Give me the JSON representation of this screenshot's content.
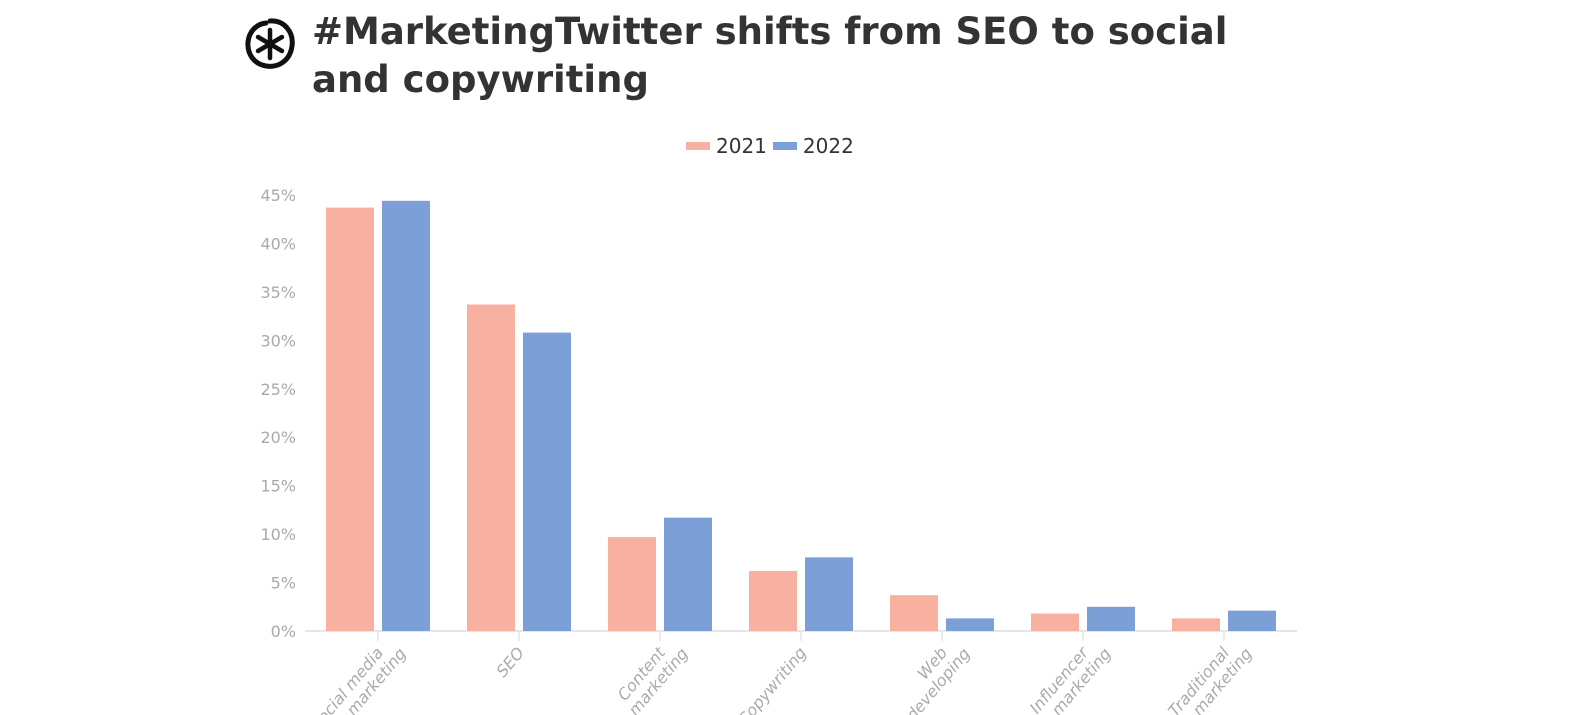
{
  "title": "#MarketingTwitter shifts from SEO to social and copywriting",
  "logo": "asterisk-circle-logo",
  "chart_data": {
    "type": "bar",
    "title": "#MarketingTwitter shifts from SEO to social and copywriting",
    "categories": [
      "Social media marketing",
      "SEO",
      "Content marketing",
      "Copywriting",
      "Web developing",
      "Influencer marketing",
      "Traditional marketing"
    ],
    "series": [
      {
        "name": "2021",
        "color": "#f8b0a0",
        "values": [
          43.7,
          33.7,
          9.7,
          6.2,
          3.7,
          1.8,
          1.3
        ]
      },
      {
        "name": "2022",
        "color": "#7b9fd6",
        "values": [
          44.4,
          30.8,
          11.7,
          7.6,
          1.3,
          2.5,
          2.1
        ]
      }
    ],
    "yticks": [
      "0%",
      "5%",
      "10%",
      "15%",
      "20%",
      "25%",
      "30%",
      "35%",
      "40%",
      "45%"
    ],
    "ylim": [
      0,
      45
    ],
    "legend_position": "top",
    "grid": false
  }
}
